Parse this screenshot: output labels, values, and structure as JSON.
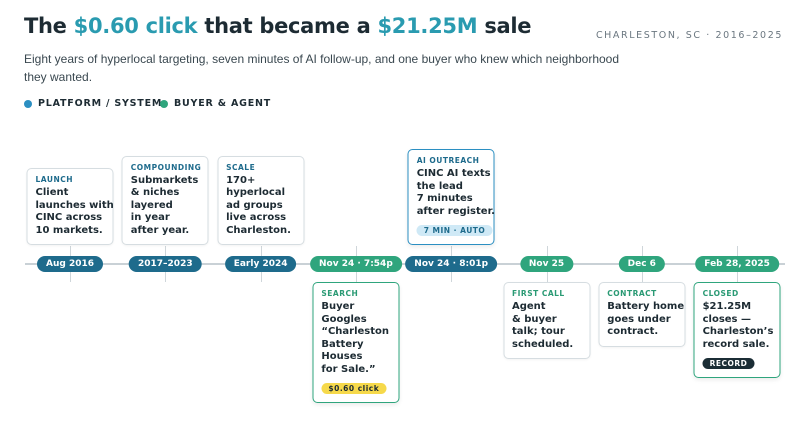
{
  "header": {
    "title": [
      "The ",
      "$0.60 click",
      " that became a ",
      "$21.25M",
      " sale"
    ],
    "meta": "CHARLESTON, SC · 2016–2025",
    "subtitle": [
      "Eight years of hyperlocal targeting, seven minutes of AI follow-up, and one buyer who knew which neighborhood",
      "they wanted."
    ]
  },
  "legend": [
    {
      "label": "PLATFORM / SYSTEM",
      "color": "#2b8fc2"
    },
    {
      "label": "BUYER & AGENT",
      "color": "#2fa57d"
    }
  ],
  "events": [
    {
      "date": "Aug 2016",
      "kind": 0,
      "label": "LAUNCH",
      "lines": [
        "Client",
        "launches with",
        "CINC across",
        "10 markets."
      ]
    },
    {
      "date": "2017–2023",
      "kind": 0,
      "label": "COMPOUNDING",
      "lines": [
        "Submarkets",
        "& niches",
        "layered",
        "in year",
        "after year."
      ]
    },
    {
      "date": "Early 2024",
      "kind": 0,
      "label": "SCALE",
      "lines": [
        "170+",
        "hyperlocal",
        "ad groups",
        "live across",
        "Charleston."
      ]
    },
    {
      "date": "Nov 24 · 7:54p",
      "kind": 1,
      "label": "SEARCH",
      "lines": [
        "Buyer",
        "Googles",
        "“Charleston",
        "Battery",
        "Houses",
        "for Sale.”"
      ],
      "tag": "$0.60 click",
      "tag_color": "#f6d94b",
      "tag_text_color": "#1d2b33"
    },
    {
      "date": "Nov 24 · 8:01p",
      "kind": 0,
      "label": "AI OUTREACH",
      "lines": [
        "CINC AI texts",
        "the lead",
        "7 minutes",
        "after register."
      ],
      "tag": "7 MIN · AUTO",
      "tag_color": "#cfe9f6",
      "tag_text_color": "#1e6b8c"
    },
    {
      "date": "Nov 25",
      "kind": 1,
      "label": "FIRST CALL",
      "lines": [
        "Agent",
        "& buyer",
        "talk; tour",
        "scheduled."
      ]
    },
    {
      "date": "Dec 6",
      "kind": 1,
      "label": "CONTRACT",
      "lines": [
        "Battery home",
        "goes under",
        "contract."
      ]
    },
    {
      "date": "Feb 28, 2025",
      "kind": 1,
      "label": "CLOSED",
      "lines": [
        "$21.25M",
        "closes —",
        "Charleston’s",
        "record sale."
      ],
      "tag": "RECORD",
      "tag_color": "#1b2d35",
      "tag_text_color": "#ffffff"
    }
  ]
}
